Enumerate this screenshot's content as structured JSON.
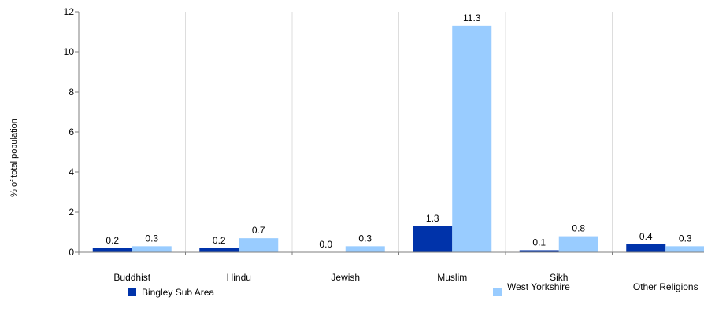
{
  "chart_data": {
    "type": "bar",
    "ylabel": "% of total population",
    "xlabel": "",
    "ylim": [
      0,
      12
    ],
    "yticks": [
      0,
      2,
      4,
      6,
      8,
      10,
      12
    ],
    "grid": "vertical",
    "legend_position": "bottom",
    "categories": [
      "Buddhist",
      "Hindu",
      "Jewish",
      "Muslim",
      "Sikh",
      "Other Religions"
    ],
    "series": [
      {
        "name": "Bingley Sub Area",
        "color": "#0033aa",
        "values": [
          0.2,
          0.2,
          0.0,
          1.3,
          0.1,
          0.4
        ],
        "labels": [
          "0.2",
          "0.2",
          "0.0",
          "1.3",
          "0.1",
          "0.4"
        ]
      },
      {
        "name": "West Yorkshire",
        "color": "#99ccff",
        "values": [
          0.3,
          0.7,
          0.3,
          11.3,
          0.8,
          0.3
        ],
        "labels": [
          "0.3",
          "0.7",
          "0.3",
          "11.3",
          "0.8",
          "0.3"
        ]
      }
    ]
  }
}
